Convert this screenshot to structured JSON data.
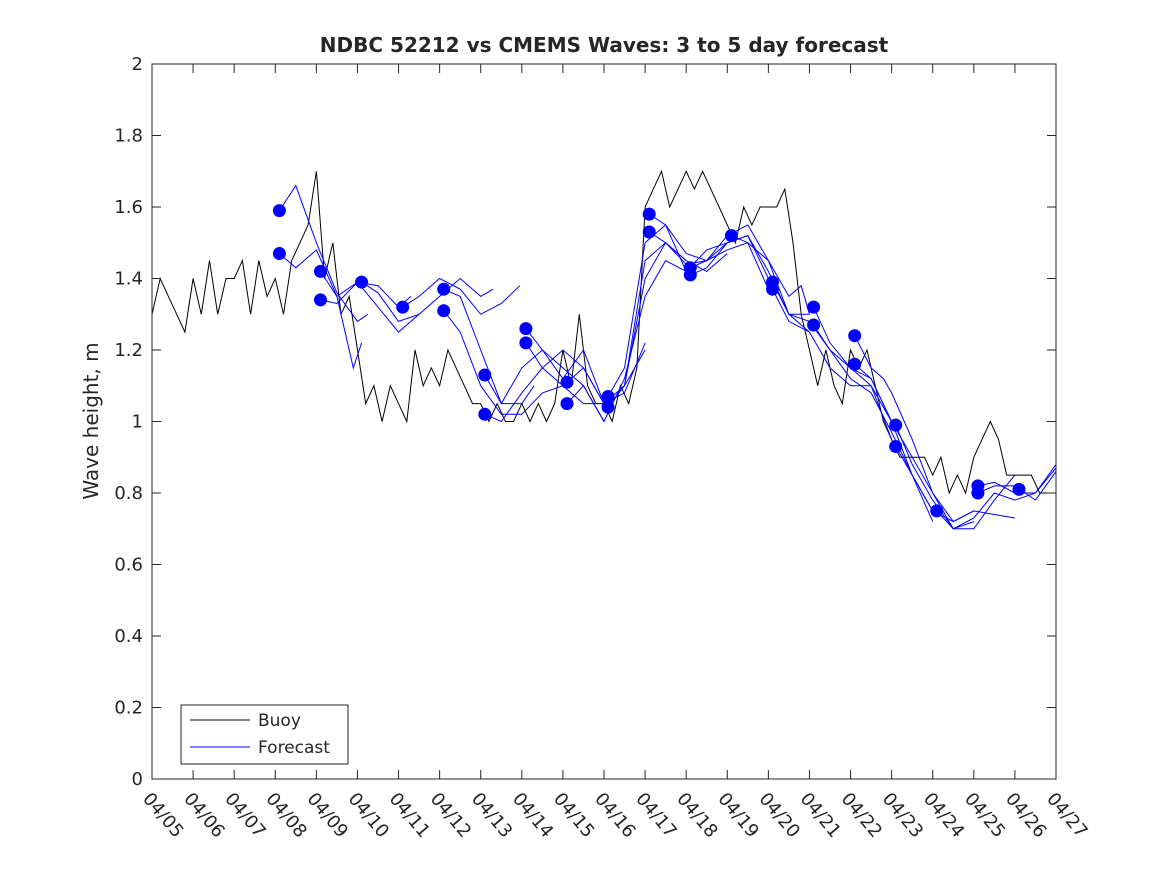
{
  "chart_data": {
    "type": "line",
    "title": "NDBC 52212 vs CMEMS Waves: 3 to 5 day forecast",
    "xlabel": "",
    "ylabel": "Wave height, m",
    "xlim": [
      "04/05",
      "04/27"
    ],
    "ylim": [
      0,
      2
    ],
    "x_ticks": [
      "04/05",
      "04/06",
      "04/07",
      "04/08",
      "04/09",
      "04/10",
      "04/11",
      "04/12",
      "04/13",
      "04/14",
      "04/15",
      "04/16",
      "04/17",
      "04/18",
      "04/19",
      "04/20",
      "04/21",
      "04/22",
      "04/23",
      "04/24",
      "04/25",
      "04/26",
      "04/27"
    ],
    "y_ticks": [
      "0",
      "0.2",
      "0.4",
      "0.6",
      "0.8",
      "1",
      "1.2",
      "1.4",
      "1.6",
      "1.8",
      "2"
    ],
    "grid": false,
    "legend_position": "bottom-left",
    "colors": {
      "buoy": "#000000",
      "forecast": "#0000ff"
    },
    "series": [
      {
        "name": "Buoy",
        "x": [
          "04/05",
          "04/05",
          "04/05",
          "04/05",
          "04/05",
          "04/06",
          "04/06",
          "04/06",
          "04/06",
          "04/06",
          "04/07",
          "04/07",
          "04/07",
          "04/07",
          "04/07",
          "04/08",
          "04/08",
          "04/08",
          "04/08",
          "04/08",
          "04/09",
          "04/09",
          "04/09",
          "04/09",
          "04/09",
          "04/10",
          "04/10",
          "04/10",
          "04/10",
          "04/10",
          "04/11",
          "04/11",
          "04/11",
          "04/11",
          "04/11",
          "04/12",
          "04/12",
          "04/12",
          "04/12",
          "04/12",
          "04/13",
          "04/13",
          "04/13",
          "04/13",
          "04/13",
          "04/14",
          "04/14",
          "04/14",
          "04/14",
          "04/14",
          "04/15",
          "04/15",
          "04/15",
          "04/15",
          "04/15",
          "04/16",
          "04/16",
          "04/16",
          "04/16",
          "04/16",
          "04/17",
          "04/17",
          "04/17",
          "04/17",
          "04/17",
          "04/18",
          "04/18",
          "04/18",
          "04/18",
          "04/18",
          "04/19",
          "04/19",
          "04/19",
          "04/19",
          "04/19",
          "04/20",
          "04/20",
          "04/20",
          "04/20",
          "04/20",
          "04/21",
          "04/21",
          "04/21",
          "04/21",
          "04/21",
          "04/22",
          "04/22",
          "04/22",
          "04/22",
          "04/22",
          "04/23",
          "04/23",
          "04/23",
          "04/23",
          "04/23",
          "04/24",
          "04/24",
          "04/24",
          "04/24",
          "04/24",
          "04/25",
          "04/25",
          "04/25",
          "04/25",
          "04/25",
          "04/26",
          "04/26",
          "04/26",
          "04/26",
          "04/26",
          "04/27"
        ],
        "t": [
          0,
          0.2,
          0.4,
          0.6,
          0.8,
          1.0,
          1.2,
          1.4,
          1.6,
          1.8,
          2.0,
          2.2,
          2.4,
          2.6,
          2.8,
          3.0,
          3.2,
          3.4,
          3.6,
          3.8,
          4.0,
          4.2,
          4.4,
          4.6,
          4.8,
          5.0,
          5.2,
          5.4,
          5.6,
          5.8,
          6.0,
          6.2,
          6.4,
          6.6,
          6.8,
          7.0,
          7.2,
          7.4,
          7.6,
          7.8,
          8.0,
          8.2,
          8.4,
          8.6,
          8.8,
          9.0,
          9.2,
          9.4,
          9.6,
          9.8,
          10.0,
          10.2,
          10.4,
          10.6,
          10.8,
          11.0,
          11.2,
          11.4,
          11.6,
          11.8,
          12.0,
          12.2,
          12.4,
          12.6,
          12.8,
          13.0,
          13.2,
          13.4,
          13.6,
          13.8,
          14.0,
          14.2,
          14.4,
          14.6,
          14.8,
          15.0,
          15.2,
          15.4,
          15.6,
          15.8,
          16.0,
          16.2,
          16.4,
          16.6,
          16.8,
          17.0,
          17.2,
          17.4,
          17.6,
          17.8,
          18.0,
          18.2,
          18.4,
          18.6,
          18.8,
          19.0,
          19.2,
          19.4,
          19.6,
          19.8,
          20.0,
          20.2,
          20.4,
          20.6,
          20.8,
          21.0,
          21.2,
          21.4,
          21.6,
          21.8,
          22.0
        ],
        "values": [
          1.3,
          1.4,
          1.35,
          1.3,
          1.25,
          1.4,
          1.3,
          1.45,
          1.3,
          1.4,
          1.4,
          1.45,
          1.3,
          1.45,
          1.35,
          1.4,
          1.3,
          1.45,
          1.5,
          1.55,
          1.7,
          1.4,
          1.5,
          1.3,
          1.35,
          1.2,
          1.05,
          1.1,
          1.0,
          1.1,
          1.05,
          1.0,
          1.2,
          1.1,
          1.15,
          1.1,
          1.2,
          1.15,
          1.1,
          1.05,
          1.05,
          1.0,
          1.05,
          1.0,
          1.0,
          1.05,
          1.0,
          1.05,
          1.0,
          1.05,
          1.2,
          1.1,
          1.3,
          1.1,
          1.05,
          1.05,
          1.0,
          1.1,
          1.05,
          1.15,
          1.6,
          1.65,
          1.7,
          1.6,
          1.65,
          1.7,
          1.65,
          1.7,
          1.65,
          1.6,
          1.55,
          1.5,
          1.6,
          1.55,
          1.6,
          1.6,
          1.6,
          1.65,
          1.5,
          1.3,
          1.2,
          1.1,
          1.2,
          1.1,
          1.05,
          1.2,
          1.15,
          1.2,
          1.1,
          1.0,
          0.95,
          0.9,
          0.9,
          0.9,
          0.9,
          0.85,
          0.9,
          0.8,
          0.85,
          0.8,
          0.9,
          0.95,
          1.0,
          0.95,
          0.85,
          0.85,
          0.85,
          0.85,
          0.8,
          0.8,
          0.8
        ]
      },
      {
        "name": "Forecast",
        "runs": [
          {
            "t": [
              3.1,
              3.5,
              4.0,
              4.5,
              5.0,
              5.25
            ],
            "values": [
              1.59,
              1.66,
              1.5,
              1.36,
              1.28,
              1.3
            ]
          },
          {
            "t": [
              3.1,
              3.5,
              4.0,
              4.5,
              4.9,
              5.1
            ],
            "values": [
              1.47,
              1.43,
              1.48,
              1.35,
              1.15,
              1.22
            ]
          },
          {
            "t": [
              4.1,
              4.5,
              5.0,
              5.5,
              6.0,
              6.3
            ],
            "values": [
              1.42,
              1.35,
              1.39,
              1.38,
              1.32,
              1.35
            ]
          },
          {
            "t": [
              4.1,
              4.5,
              5.0,
              5.5,
              6.0,
              6.5
            ],
            "values": [
              1.34,
              1.33,
              1.39,
              1.32,
              1.25,
              1.3
            ]
          },
          {
            "t": [
              5.1,
              5.5,
              6.0,
              6.5,
              7.0,
              7.5,
              8.0,
              8.3
            ],
            "values": [
              1.39,
              1.36,
              1.28,
              1.3,
              1.35,
              1.4,
              1.35,
              1.37
            ]
          },
          {
            "t": [
              6.1,
              6.5,
              7.0,
              7.5,
              8.0,
              8.5,
              8.95
            ],
            "values": [
              1.32,
              1.35,
              1.4,
              1.37,
              1.3,
              1.33,
              1.38
            ]
          },
          {
            "t": [
              7.1,
              7.5,
              8.0,
              8.5,
              9.0,
              9.3
            ],
            "values": [
              1.37,
              1.35,
              1.2,
              1.05,
              1.05,
              1.1
            ]
          },
          {
            "t": [
              7.1,
              7.5,
              8.0,
              8.5,
              9.0,
              9.5,
              10.0
            ],
            "values": [
              1.31,
              1.25,
              1.1,
              1.02,
              1.02,
              1.08,
              1.1
            ]
          },
          {
            "t": [
              8.1,
              8.5,
              9.0,
              9.5,
              10.0,
              10.5,
              11.0
            ],
            "values": [
              1.13,
              1.05,
              1.15,
              1.2,
              1.15,
              1.1,
              1.0
            ]
          },
          {
            "t": [
              8.1,
              8.5,
              9.0,
              9.5,
              10.0,
              10.5,
              11.0
            ],
            "values": [
              1.02,
              1.0,
              1.08,
              1.15,
              1.2,
              1.15,
              1.05
            ]
          },
          {
            "t": [
              9.1,
              9.5,
              10.0,
              10.5,
              11.0,
              11.5,
              12.0
            ],
            "values": [
              1.26,
              1.2,
              1.12,
              1.2,
              1.05,
              1.08,
              1.22
            ]
          },
          {
            "t": [
              9.1,
              9.5,
              10.0,
              10.5,
              11.0,
              11.5,
              12.0
            ],
            "values": [
              1.22,
              1.15,
              1.1,
              1.05,
              1.05,
              1.1,
              1.2
            ]
          },
          {
            "t": [
              10.1,
              10.5,
              11.0,
              11.5,
              12.0,
              12.5,
              13.0
            ],
            "values": [
              1.11,
              1.15,
              1.05,
              1.1,
              1.4,
              1.5,
              1.45
            ]
          },
          {
            "t": [
              10.1,
              10.5,
              11.0,
              11.5,
              12.0,
              12.5,
              13.0
            ],
            "values": [
              1.05,
              1.1,
              1.0,
              1.12,
              1.35,
              1.45,
              1.42
            ]
          },
          {
            "t": [
              11.1,
              11.5,
              12.0,
              12.5,
              13.0,
              13.5,
              14.0
            ],
            "values": [
              1.07,
              1.15,
              1.5,
              1.55,
              1.47,
              1.45,
              1.5
            ]
          },
          {
            "t": [
              11.1,
              11.5,
              12.0,
              12.5,
              13.0,
              13.5,
              14.0
            ],
            "values": [
              1.04,
              1.1,
              1.45,
              1.5,
              1.45,
              1.42,
              1.47
            ]
          },
          {
            "t": [
              12.1,
              12.5,
              13.0,
              13.5,
              14.0,
              14.5,
              15.0
            ],
            "values": [
              1.58,
              1.55,
              1.42,
              1.48,
              1.5,
              1.52,
              1.4
            ]
          },
          {
            "t": [
              12.1,
              12.5,
              13.0,
              13.5,
              14.0,
              14.5,
              15.0
            ],
            "values": [
              1.53,
              1.5,
              1.44,
              1.45,
              1.48,
              1.5,
              1.37
            ]
          },
          {
            "t": [
              13.1,
              13.5,
              14.0,
              14.5,
              15.0,
              15.5,
              16.0
            ],
            "values": [
              1.43,
              1.45,
              1.52,
              1.55,
              1.45,
              1.3,
              1.3
            ]
          },
          {
            "t": [
              13.1,
              13.5,
              14.0,
              14.5,
              15.0,
              15.5,
              16.0
            ],
            "values": [
              1.41,
              1.43,
              1.5,
              1.52,
              1.42,
              1.3,
              1.25
            ]
          },
          {
            "t": [
              14.1,
              14.5,
              15.0,
              15.5,
              15.8,
              16.0
            ],
            "values": [
              1.52,
              1.5,
              1.45,
              1.35,
              1.38,
              1.3
            ]
          },
          {
            "t": [
              15.1,
              15.5,
              16.0,
              16.5,
              17.0,
              17.5,
              18.0
            ],
            "values": [
              1.39,
              1.3,
              1.28,
              1.2,
              1.15,
              1.12,
              1.0
            ]
          },
          {
            "t": [
              15.1,
              15.5,
              16.0,
              16.5,
              17.0,
              17.5,
              18.0
            ],
            "values": [
              1.37,
              1.28,
              1.25,
              1.15,
              1.1,
              1.1,
              0.95
            ]
          },
          {
            "t": [
              16.1,
              16.5,
              17.0,
              17.5,
              18.0,
              18.5,
              19.0
            ],
            "values": [
              1.32,
              1.22,
              1.15,
              1.1,
              1.0,
              0.85,
              0.75
            ]
          },
          {
            "t": [
              16.1,
              16.5,
              17.0,
              17.5,
              18.0,
              18.5,
              19.0
            ],
            "values": [
              1.27,
              1.2,
              1.12,
              1.08,
              0.97,
              0.85,
              0.72
            ]
          },
          {
            "t": [
              17.1,
              17.5,
              17.8,
              18.0,
              18.5,
              19.0,
              19.5,
              20.0
            ],
            "values": [
              1.24,
              1.15,
              1.12,
              1.08,
              0.95,
              0.8,
              0.7,
              0.72
            ]
          },
          {
            "t": [
              17.1,
              17.5,
              18.0,
              18.5,
              19.0,
              19.5,
              20.0
            ],
            "values": [
              1.16,
              1.12,
              1.0,
              0.9,
              0.8,
              0.72,
              0.75
            ]
          },
          {
            "t": [
              18.1,
              18.5,
              19.0,
              19.5,
              20.0,
              20.5,
              21.0
            ],
            "values": [
              0.99,
              0.88,
              0.78,
              0.7,
              0.7,
              0.78,
              0.85
            ]
          },
          {
            "t": [
              18.1,
              18.5,
              19.0,
              19.5,
              20.0,
              20.5,
              21.0
            ],
            "values": [
              0.93,
              0.85,
              0.75,
              0.72,
              0.75,
              0.74,
              0.73
            ]
          },
          {
            "t": [
              19.1,
              19.5,
              20.0,
              20.5,
              21.0,
              21.5,
              22.0
            ],
            "values": [
              0.75,
              0.7,
              0.73,
              0.8,
              0.78,
              0.8,
              0.88
            ]
          },
          {
            "t": [
              20.1,
              20.5,
              21.0,
              21.5,
              22.0
            ],
            "values": [
              0.82,
              0.83,
              0.8,
              0.8,
              0.87
            ]
          },
          {
            "t": [
              20.1,
              20.5,
              21.0,
              21.5,
              22.0
            ],
            "values": [
              0.8,
              0.82,
              0.82,
              0.78,
              0.86
            ]
          }
        ],
        "markers": {
          "t": [
            3.1,
            3.1,
            4.1,
            4.1,
            5.1,
            6.1,
            7.1,
            7.1,
            8.1,
            8.1,
            9.1,
            9.1,
            10.1,
            10.1,
            11.1,
            11.1,
            12.1,
            12.1,
            13.1,
            13.1,
            14.1,
            15.1,
            15.1,
            16.1,
            16.1,
            17.1,
            17.1,
            18.1,
            18.1,
            19.1,
            20.1,
            20.1,
            21.1
          ],
          "values": [
            1.59,
            1.47,
            1.42,
            1.34,
            1.39,
            1.32,
            1.37,
            1.31,
            1.13,
            1.02,
            1.26,
            1.22,
            1.11,
            1.05,
            1.07,
            1.04,
            1.58,
            1.53,
            1.43,
            1.41,
            1.52,
            1.39,
            1.37,
            1.32,
            1.27,
            1.24,
            1.16,
            0.99,
            0.93,
            0.75,
            0.82,
            0.8,
            0.81
          ]
        }
      }
    ]
  }
}
